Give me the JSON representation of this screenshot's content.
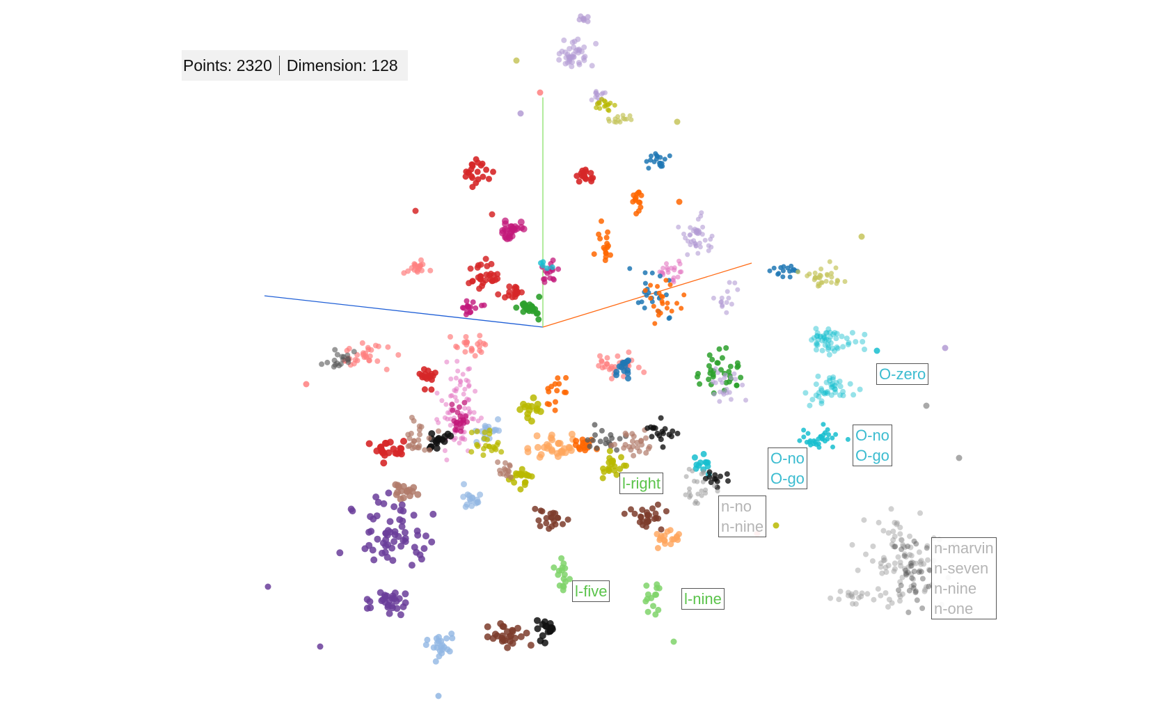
{
  "stats": {
    "points_label": "Points:",
    "points_value": "2320",
    "dimension_label": "Dimension:",
    "dimension_value": "128"
  },
  "axes": {
    "x_color": "#1f5fd6",
    "y_color": "#88e06a",
    "z_color": "#ff6a14"
  },
  "labels": [
    {
      "name": "o-zero",
      "lines": [
        "O-zero"
      ],
      "color": "#3cbcd0"
    },
    {
      "name": "o-no-o-go-1",
      "lines": [
        "O-no",
        "O-go"
      ],
      "color": "#3cbcd0"
    },
    {
      "name": "o-no-o-go-2",
      "lines": [
        "O-no",
        "O-go"
      ],
      "color": "#3cbcd0"
    },
    {
      "name": "l-right",
      "lines": [
        "l-right"
      ],
      "color": "#5ac34a"
    },
    {
      "name": "n-no-n-nine",
      "lines": [
        "n-no",
        "n-nine"
      ],
      "color": "#b5b5b5"
    },
    {
      "name": "n-group",
      "lines": [
        "n-marvin",
        "n-seven",
        "n-nine",
        "n-one"
      ],
      "color": "#b5b5b5"
    },
    {
      "name": "l-five",
      "lines": [
        "l-five"
      ],
      "color": "#5ac34a"
    },
    {
      "name": "l-nine",
      "lines": [
        "l-nine"
      ],
      "color": "#5ac34a"
    }
  ],
  "palette": {
    "red": "#d62728",
    "salmon": "#ff7f7f",
    "pink": "#e377c2",
    "magenta": "#c2187a",
    "lavender": "#b39bd3",
    "purple": "#6a3d9a",
    "blue": "#1f77b4",
    "lightblue": "#91b6e3",
    "cyan": "#17becf",
    "orange": "#ff6600",
    "lightorange": "#ffa55c",
    "olive": "#b8b800",
    "khaki": "#c5c45c",
    "green": "#2ca02c",
    "lightgreen": "#7fd36a",
    "brown": "#7d3c2c",
    "tan": "#b07a6a",
    "gray": "#9a9a9a",
    "darkgray": "#555555",
    "black": "#111111"
  }
}
